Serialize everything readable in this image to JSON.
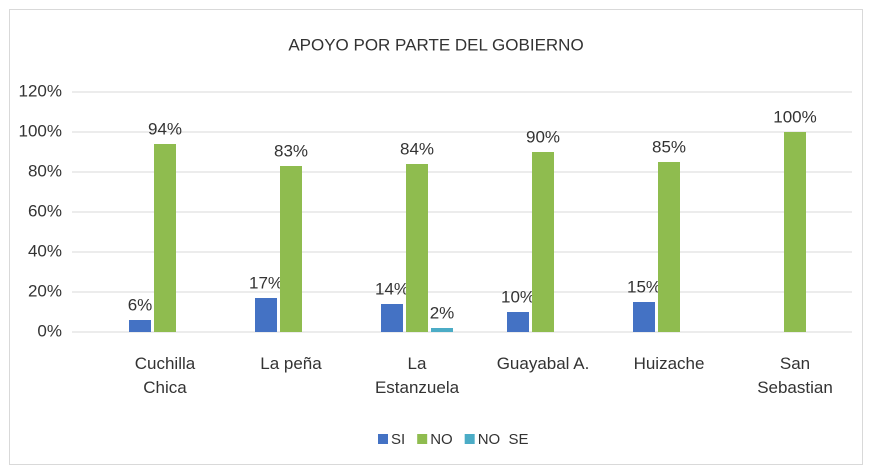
{
  "chart_data": {
    "type": "bar",
    "title": "APOYO POR PARTE DEL GOBIERNO",
    "categories": [
      "Cuchilla\nChica",
      "La peña",
      "La\nEstanzuela",
      "Guayabal A.",
      "Huizache",
      "San\nSebastian"
    ],
    "series": [
      {
        "name": "SI",
        "color": "#4472c4",
        "values": [
          6,
          17,
          14,
          10,
          15,
          null
        ],
        "value_labels": [
          "6%",
          "17%",
          "14%",
          "10%",
          "15%",
          null
        ]
      },
      {
        "name": "NO",
        "color": "#8fbc4f",
        "values": [
          94,
          83,
          84,
          90,
          85,
          100
        ],
        "value_labels": [
          "94%",
          "83%",
          "84%",
          "90%",
          "85%",
          "100%"
        ]
      },
      {
        "name": "NO  SE",
        "color": "#4bacc6",
        "values": [
          null,
          null,
          2,
          null,
          null,
          null
        ],
        "value_labels": [
          null,
          null,
          "2%",
          null,
          null,
          null
        ]
      }
    ],
    "ylim": [
      0,
      120
    ],
    "yticks": [
      {
        "value": 0,
        "label": "0%"
      },
      {
        "value": 20,
        "label": "20%"
      },
      {
        "value": 40,
        "label": "40%"
      },
      {
        "value": 60,
        "label": "60%"
      },
      {
        "value": 80,
        "label": "80%"
      },
      {
        "value": 100,
        "label": "100%"
      },
      {
        "value": 120,
        "label": "120%"
      }
    ],
    "grid": true,
    "legend": "bottom"
  }
}
